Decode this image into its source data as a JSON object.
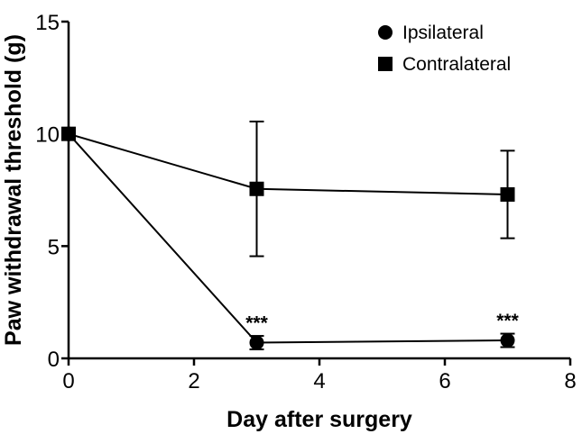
{
  "chart_data": {
    "type": "line",
    "title": "",
    "xlabel": "Day after surgery",
    "ylabel": "Paw withdrawal threshold (g)",
    "xlim": [
      0,
      8
    ],
    "ylim": [
      0,
      15
    ],
    "xticks": [
      "0",
      "2",
      "4",
      "6",
      "8"
    ],
    "yticks": [
      "0",
      "5",
      "10",
      "15"
    ],
    "grid": false,
    "legend_position": "top-right",
    "series": [
      {
        "name": "Ipsilateral",
        "marker": "circle",
        "x": [
          0,
          3,
          7
        ],
        "y": [
          10.0,
          0.7,
          0.8
        ],
        "error": [
          0,
          0.3,
          0.3
        ]
      },
      {
        "name": "Contralateral",
        "marker": "square",
        "x": [
          0,
          3,
          7
        ],
        "y": [
          10.0,
          7.55,
          7.3
        ],
        "error": [
          0,
          3.0,
          1.95
        ]
      }
    ],
    "annotations": [
      {
        "text": "***",
        "x": 3,
        "series": "Ipsilateral"
      },
      {
        "text": "***",
        "x": 7,
        "series": "Ipsilateral"
      }
    ]
  }
}
